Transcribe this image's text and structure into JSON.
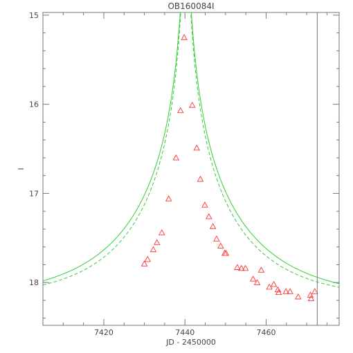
{
  "chart_data": {
    "type": "scatter",
    "title": "OB160084I",
    "xlabel": "JD - 2450000",
    "ylabel": "I",
    "xlim": [
      7405,
      7478
    ],
    "ylim": [
      18.48,
      14.97
    ],
    "y_inverted": true,
    "x_ticks": [
      7420,
      7440,
      7460
    ],
    "y_ticks": [
      15,
      16,
      17,
      18
    ],
    "vertical_line_x": 7472.6,
    "colors": {
      "model": "#33cc33",
      "points": "#ff3333",
      "frame": "#777777",
      "text": "#444444"
    },
    "model_solid": {
      "t0": 7440.2,
      "tE": 29.0,
      "u0": 0.02,
      "baseline": 18.2
    },
    "model_dashed": {
      "t0": 7440.2,
      "tE": 26.0,
      "u0": 0.018,
      "baseline": 18.2
    },
    "points": [
      {
        "x": 7430.0,
        "y": 17.79
      },
      {
        "x": 7430.8,
        "y": 17.74
      },
      {
        "x": 7432.2,
        "y": 17.63
      },
      {
        "x": 7433.1,
        "y": 17.55
      },
      {
        "x": 7434.3,
        "y": 17.44
      },
      {
        "x": 7436.0,
        "y": 17.06
      },
      {
        "x": 7437.8,
        "y": 16.6
      },
      {
        "x": 7438.9,
        "y": 16.07
      },
      {
        "x": 7439.8,
        "y": 15.25
      },
      {
        "x": 7441.8,
        "y": 16.01
      },
      {
        "x": 7442.9,
        "y": 16.49
      },
      {
        "x": 7443.8,
        "y": 16.84
      },
      {
        "x": 7444.9,
        "y": 17.13
      },
      {
        "x": 7445.9,
        "y": 17.26
      },
      {
        "x": 7446.9,
        "y": 17.37
      },
      {
        "x": 7447.8,
        "y": 17.51
      },
      {
        "x": 7448.8,
        "y": 17.59
      },
      {
        "x": 7449.8,
        "y": 17.67
      },
      {
        "x": 7450.1,
        "y": 17.67
      },
      {
        "x": 7452.9,
        "y": 17.83
      },
      {
        "x": 7453.9,
        "y": 17.84
      },
      {
        "x": 7454.9,
        "y": 17.84
      },
      {
        "x": 7456.8,
        "y": 17.96
      },
      {
        "x": 7457.8,
        "y": 18.0
      },
      {
        "x": 7458.8,
        "y": 17.86
      },
      {
        "x": 7460.8,
        "y": 18.05
      },
      {
        "x": 7461.9,
        "y": 18.02
      },
      {
        "x": 7462.9,
        "y": 18.08
      },
      {
        "x": 7463.1,
        "y": 18.11
      },
      {
        "x": 7464.9,
        "y": 18.1
      },
      {
        "x": 7465.9,
        "y": 18.1
      },
      {
        "x": 7467.9,
        "y": 18.16
      },
      {
        "x": 7470.9,
        "y": 18.14
      },
      {
        "x": 7471.1,
        "y": 18.18
      },
      {
        "x": 7472.0,
        "y": 18.1
      }
    ]
  }
}
